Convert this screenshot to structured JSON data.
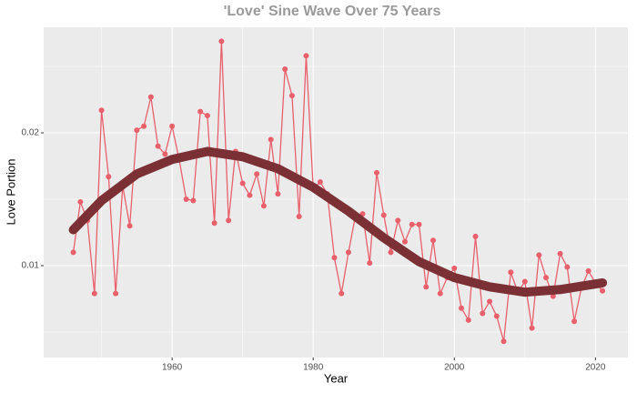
{
  "chart_data": {
    "type": "line",
    "title": "'Love' Sine Wave Over 75 Years",
    "x_label": "Year",
    "y_label": "Love Portion",
    "x": [
      1946,
      1947,
      1948,
      1949,
      1950,
      1951,
      1952,
      1953,
      1954,
      1955,
      1956,
      1957,
      1958,
      1959,
      1960,
      1961,
      1962,
      1963,
      1964,
      1965,
      1966,
      1967,
      1968,
      1969,
      1970,
      1971,
      1972,
      1973,
      1974,
      1975,
      1976,
      1977,
      1978,
      1979,
      1980,
      1981,
      1982,
      1983,
      1984,
      1985,
      1986,
      1987,
      1988,
      1989,
      1990,
      1991,
      1992,
      1993,
      1994,
      1995,
      1996,
      1997,
      1998,
      1999,
      2000,
      2001,
      2002,
      2003,
      2004,
      2005,
      2006,
      2007,
      2008,
      2009,
      2010,
      2011,
      2012,
      2013,
      2014,
      2015,
      2016,
      2017,
      2018,
      2019,
      2020,
      2021
    ],
    "series": [
      {
        "color": "#e8606b",
        "markers": true,
        "values": [
          0.011,
          0.0148,
          0.0134,
          0.0079,
          0.0217,
          0.0167,
          0.0079,
          0.016,
          0.013,
          0.0202,
          0.0205,
          0.0227,
          0.019,
          0.0184,
          0.0205,
          0.018,
          0.015,
          0.0149,
          0.0216,
          0.0213,
          0.0132,
          0.0269,
          0.0134,
          0.0186,
          0.0162,
          0.0153,
          0.0169,
          0.0145,
          0.0195,
          0.0154,
          0.0248,
          0.0228,
          0.0137,
          0.0258,
          0.0158,
          0.0163,
          0.0154,
          0.0106,
          0.0079,
          0.011,
          0.0138,
          0.0139,
          0.0102,
          0.017,
          0.0138,
          0.011,
          0.0134,
          0.0118,
          0.0131,
          0.0131,
          0.0084,
          0.0119,
          0.0079,
          0.0091,
          0.0098,
          0.0068,
          0.0059,
          0.0122,
          0.0064,
          0.0073,
          0.0062,
          0.0043,
          0.0095,
          0.008,
          0.0088,
          0.0053,
          0.0108,
          0.0091,
          0.0077,
          0.0109,
          0.0099,
          0.0058,
          0.0083,
          0.0096,
          0.0087,
          0.0081
        ]
      },
      {
        "color": "#7b3035",
        "markers": false,
        "width": 10,
        "x": [
          1946,
          1950,
          1955,
          1960,
          1965,
          1970,
          1975,
          1980,
          1985,
          1990,
          1995,
          2000,
          2005,
          2010,
          2015,
          2021
        ],
        "values": [
          0.0127,
          0.0149,
          0.0169,
          0.018,
          0.0186,
          0.0182,
          0.0173,
          0.0159,
          0.0141,
          0.0121,
          0.0103,
          0.0091,
          0.0084,
          0.008,
          0.0082,
          0.0087
        ]
      }
    ],
    "xlim": [
      1941.8,
      2024.6
    ],
    "xticks": [
      1960,
      1980,
      2000,
      2020
    ],
    "x_minor_ticks": [
      1950,
      1970,
      1990,
      2010
    ],
    "ylim": [
      0.00308,
      0.02795
    ],
    "yticks": [
      0.01,
      0.02
    ],
    "y_minor_ticks": [
      0.005,
      0.015,
      0.025
    ],
    "grid": true
  }
}
